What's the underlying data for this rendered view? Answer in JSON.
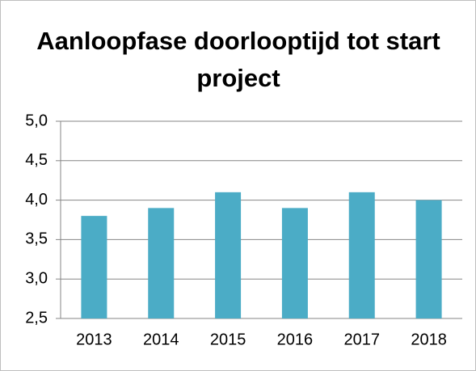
{
  "chart_data": {
    "type": "bar",
    "title": "Aanloopfase doorlooptijd tot start project",
    "categories": [
      "2013",
      "2014",
      "2015",
      "2016",
      "2017",
      "2018"
    ],
    "values": [
      3.8,
      3.9,
      4.1,
      3.9,
      4.1,
      4.0
    ],
    "color": "#4bacc6",
    "ylim": [
      2.5,
      5.0
    ],
    "yticks": [
      {
        "value": 2.5,
        "label": "2,5"
      },
      {
        "value": 3.0,
        "label": "3,0"
      },
      {
        "value": 3.5,
        "label": "3,5"
      },
      {
        "value": 4.0,
        "label": "4,0"
      },
      {
        "value": 4.5,
        "label": "4,5"
      },
      {
        "value": 5.0,
        "label": "5,0"
      }
    ],
    "grid": true
  }
}
